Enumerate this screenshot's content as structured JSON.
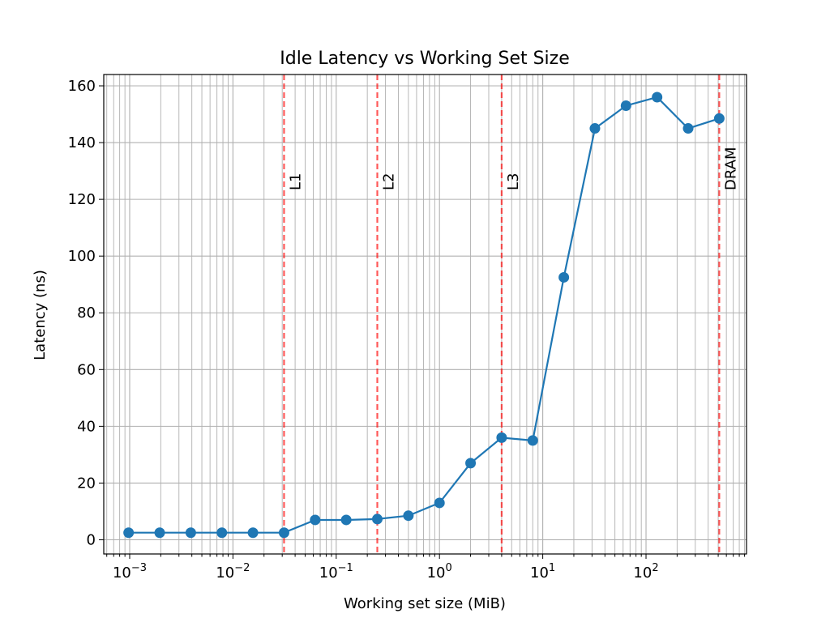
{
  "chart_data": {
    "type": "line",
    "title": "Idle Latency vs Working Set Size",
    "xlabel": "Working set size (MiB)",
    "ylabel": "Latency (ns)",
    "xscale": "log",
    "xlim": [
      0.000561,
      940
    ],
    "ylim": [
      -5,
      164
    ],
    "grid": "on (major and minor x, major y)",
    "x_ticks": [
      {
        "value": 0.001,
        "base": "10",
        "exp": "−3"
      },
      {
        "value": 0.01,
        "base": "10",
        "exp": "−2"
      },
      {
        "value": 0.1,
        "base": "10",
        "exp": "−1"
      },
      {
        "value": 1,
        "base": "10",
        "exp": "0"
      },
      {
        "value": 10,
        "base": "10",
        "exp": "1"
      },
      {
        "value": 100,
        "base": "10",
        "exp": "2"
      }
    ],
    "y_ticks": [
      0,
      20,
      40,
      60,
      80,
      100,
      120,
      140,
      160
    ],
    "series": [
      {
        "color": "#1f77b4",
        "x": [
          0.0009765625,
          0.001953125,
          0.00390625,
          0.0078125,
          0.015625,
          0.03125,
          0.0625,
          0.125,
          0.25,
          0.5,
          1,
          2,
          4,
          8,
          16,
          32,
          64,
          128,
          256,
          512
        ],
        "y": [
          2.5,
          2.5,
          2.5,
          2.5,
          2.5,
          2.5,
          7.0,
          7.0,
          7.3,
          8.5,
          13.0,
          27.0,
          36.0,
          35.0,
          92.5,
          145.0,
          153.0,
          156.0,
          145.0,
          148.5
        ]
      }
    ],
    "reference_lines": [
      {
        "label": "L1",
        "x": 0.03125,
        "color": "#ff0000"
      },
      {
        "label": "L2",
        "x": 0.25,
        "color": "#ff0000"
      },
      {
        "label": "L3",
        "x": 4,
        "color": "#ff0000"
      },
      {
        "label": "DRAM",
        "x": 512,
        "color": "#ff0000"
      }
    ]
  }
}
